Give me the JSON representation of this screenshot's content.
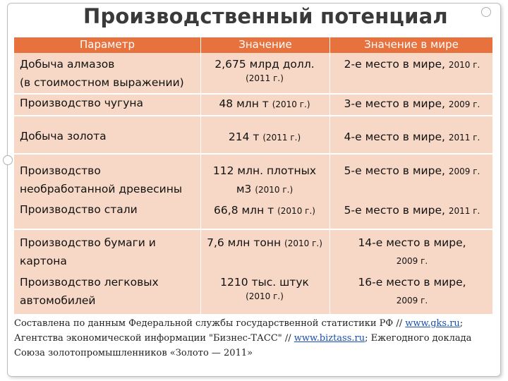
{
  "title": "Производственный потенциал",
  "headers": [
    "Параметр",
    "Значение",
    "Значение в мире"
  ],
  "rows": [
    {
      "param_lines": [
        "Добыча алмазов",
        "(в стоимостном выражении)"
      ],
      "value_main": "2,675 млрд долл.",
      "value_sub": "(2011 г.)",
      "rank_main": "2-е место в  мире, ",
      "rank_year": "2010 г."
    },
    {
      "param_lines": [
        "Производство чугуна"
      ],
      "value_main": "48 млн т ",
      "value_year": "(2010 г.)",
      "rank_main": "3-е место в  мире, ",
      "rank_year": "2009 г."
    },
    {
      "param_lines": [
        "Добыча золота"
      ],
      "value_main": "214 т ",
      "value_year": "(2011 г.)",
      "rank_main": "4-е место в  мире, ",
      "rank_year": "2011 г."
    },
    {
      "param_lines": [
        "Производство",
        "необработанной древесины"
      ],
      "value_main": "112 млн. плотных",
      "value_line2": "м3 ",
      "value_year": "(2010 г.)",
      "rank_main": "5-е место в мире, ",
      "rank_year": "2009 г."
    },
    {
      "param_lines": [
        "Производство стали"
      ],
      "value_main": "66,8 млн т ",
      "value_year": "(2010 г.)",
      "rank_main": "5-е место в мире, ",
      "rank_year": "2011 г."
    },
    {
      "param_lines": [
        "Производство бумаги и",
        "картона"
      ],
      "value_main": "7,6  млн тонн ",
      "value_year": "(2010 г.)",
      "rank_main": "14-е место в мире,",
      "rank_year": "2009 г."
    },
    {
      "param_lines": [
        "Производство легковых",
        "автомобилей"
      ],
      "value_main": "1210 тыс. штук",
      "value_sub": "(2010 г.)",
      "rank_main": "16-е место в мире,",
      "rank_year": "2009 г."
    }
  ],
  "footer": {
    "line1_a": "Составлена по данным Федеральной службы государственной статистики РФ // ",
    "link1": "www.gks.ru",
    "line1_b": ";",
    "line2_a": "Агентства экономической информации \"Бизнес-ТАСС\" // ",
    "link2": "www.biztass.ru",
    "line2_b": "; Ежегодного доклада",
    "line3": "Союза золотопромышленников «Золото — 2011»"
  }
}
